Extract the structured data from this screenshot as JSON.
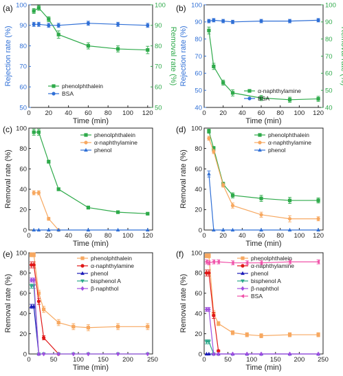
{
  "palette": {
    "blue": "#2f6fd6",
    "green": "#2eaa4a",
    "orange": "#f7a860",
    "red": "#e01818",
    "navy": "#1a1ab8",
    "teal": "#2aa88a",
    "purple": "#a050e0",
    "pink": "#f050a8"
  },
  "chart_data": [
    {
      "type": "line",
      "panel_label": "(a)",
      "xlabel": "Time (min)",
      "ylabel": "Rejection rate (%)",
      "ylabel_right": "Removal rate (%)",
      "xlim": [
        0,
        125
      ],
      "xticks": [
        0,
        20,
        40,
        60,
        80,
        100,
        120
      ],
      "ylim": [
        50,
        100
      ],
      "yticks": [
        50,
        60,
        70,
        80,
        90,
        100
      ],
      "ylim_right": [
        50,
        100
      ],
      "yticks_right": [
        50,
        60,
        70,
        80,
        90,
        100
      ],
      "legend_position": "lower-left",
      "series": [
        {
          "name": "phenolphthalein",
          "color": "green",
          "marker": "square",
          "axis": "right",
          "x": [
            5,
            10,
            20,
            30,
            60,
            90,
            120
          ],
          "y": [
            97,
            98.5,
            93,
            85.5,
            80,
            78.5,
            78
          ],
          "err": [
            1.2,
            1.2,
            1.2,
            1.8,
            1.5,
            1.5,
            1.8
          ]
        },
        {
          "name": "BSA",
          "color": "blue",
          "marker": "circle",
          "axis": "left",
          "x": [
            5,
            10,
            20,
            30,
            60,
            90,
            120
          ],
          "y": [
            90.5,
            90.5,
            90,
            90,
            91,
            90.5,
            90
          ],
          "err": [
            1,
            1,
            1,
            1,
            1,
            1,
            1
          ]
        }
      ]
    },
    {
      "type": "line",
      "panel_label": "(b)",
      "xlabel": "Time (min)",
      "ylabel": "Rejection rate (%)",
      "ylabel_right": "Removal rate (%)",
      "xlim": [
        0,
        125
      ],
      "xticks": [
        0,
        20,
        40,
        60,
        80,
        100,
        120
      ],
      "ylim": [
        40,
        100
      ],
      "yticks": [
        40,
        50,
        60,
        70,
        80,
        90,
        100
      ],
      "ylim_right": [
        40,
        100
      ],
      "yticks_right": [
        40,
        50,
        60,
        70,
        80,
        90,
        100
      ],
      "legend_position": "lower-center",
      "series": [
        {
          "name": "α-naphthylamine",
          "color": "green",
          "marker": "square",
          "axis": "right",
          "x": [
            5,
            10,
            20,
            30,
            60,
            90,
            120
          ],
          "y": [
            85,
            64,
            54.5,
            48.5,
            45.5,
            44.5,
            45
          ],
          "err": [
            2,
            1.8,
            1.5,
            1.8,
            1.5,
            1.5,
            1.5
          ]
        },
        {
          "name": "BSA",
          "color": "blue",
          "marker": "circle",
          "axis": "left",
          "x": [
            5,
            10,
            20,
            30,
            60,
            90,
            120
          ],
          "y": [
            90.5,
            91,
            90.5,
            90,
            90.5,
            90.5,
            91
          ],
          "err": [
            1,
            1,
            1,
            1,
            1,
            1,
            1
          ]
        }
      ]
    },
    {
      "type": "line",
      "panel_label": "(c)",
      "xlabel": "Time (min)",
      "ylabel": "Removal rate (%)",
      "xlim": [
        0,
        125
      ],
      "xticks": [
        0,
        20,
        40,
        60,
        80,
        100,
        120
      ],
      "ylim": [
        0,
        100
      ],
      "yticks": [
        0,
        20,
        40,
        60,
        80,
        100
      ],
      "legend_position": "top-right",
      "series": [
        {
          "name": "phenolphthalein",
          "color": "green",
          "marker": "square",
          "x": [
            5,
            10,
            20,
            30,
            60,
            90,
            120
          ],
          "y": [
            96,
            96,
            67,
            40,
            22,
            17.5,
            16
          ],
          "err": [
            3,
            3,
            1.5,
            1.5,
            1.5,
            1,
            1
          ]
        },
        {
          "name": "α-naphthylamine",
          "color": "orange",
          "marker": "circle",
          "x": [
            5,
            10,
            20,
            30
          ],
          "y": [
            36.5,
            36.5,
            11,
            0
          ],
          "err": [
            2,
            2,
            1.5,
            0.5
          ]
        },
        {
          "name": "phenol",
          "color": "blue",
          "marker": "triangle",
          "x": [
            5,
            10,
            20,
            30,
            60,
            90,
            120
          ],
          "y": [
            0,
            0,
            0,
            0,
            0,
            0,
            0
          ],
          "err": [
            0,
            0,
            0,
            0,
            0,
            0,
            0
          ]
        }
      ]
    },
    {
      "type": "line",
      "panel_label": "(d)",
      "xlabel": "Time (min)",
      "ylabel": "Removal rate (%)",
      "xlim": [
        0,
        125
      ],
      "xticks": [
        0,
        20,
        40,
        60,
        80,
        100,
        120
      ],
      "ylim": [
        0,
        100
      ],
      "yticks": [
        0,
        20,
        40,
        60,
        80,
        100
      ],
      "legend_position": "top-right",
      "series": [
        {
          "name": "phenolphthalein",
          "color": "green",
          "marker": "square",
          "x": [
            5,
            10,
            20,
            30,
            60,
            90,
            120
          ],
          "y": [
            97,
            80,
            45,
            34,
            31,
            29,
            29
          ],
          "err": [
            2,
            2,
            2,
            2.5,
            3,
            3,
            2.5
          ]
        },
        {
          "name": "α-naphthylamine",
          "color": "orange",
          "marker": "circle",
          "x": [
            5,
            10,
            20,
            30,
            60,
            90,
            120
          ],
          "y": [
            90,
            77,
            44,
            24,
            15,
            11,
            11
          ],
          "err": [
            2,
            2,
            2,
            2.5,
            2.5,
            3,
            2
          ]
        },
        {
          "name": "phenol",
          "color": "blue",
          "marker": "triangle",
          "x": [
            5,
            10,
            20,
            30,
            60,
            90,
            120
          ],
          "y": [
            55,
            0,
            0,
            0,
            0,
            0,
            0
          ],
          "err": [
            3,
            0,
            0,
            0,
            0,
            0,
            0
          ]
        }
      ]
    },
    {
      "type": "line",
      "panel_label": "(e)",
      "xlabel": "Time (min)",
      "ylabel": "Removal rate (%)",
      "xlim": [
        0,
        250
      ],
      "xticks": [
        0,
        50,
        100,
        150,
        200,
        250
      ],
      "ylim": [
        0,
        100
      ],
      "yticks": [
        0,
        20,
        40,
        60,
        80,
        100
      ],
      "legend_position": "top-right",
      "series": [
        {
          "name": "phenolphthalein",
          "color": "orange",
          "marker": "square",
          "x": [
            5,
            10,
            20,
            30,
            60,
            90,
            120,
            180,
            240
          ],
          "y": [
            98,
            98,
            60,
            44,
            31,
            27,
            26,
            27,
            27
          ],
          "err": [
            2,
            2,
            3,
            3,
            3,
            3,
            3,
            3,
            3
          ]
        },
        {
          "name": "α-naphthylamine",
          "color": "red",
          "marker": "circle",
          "x": [
            5,
            10,
            20,
            30,
            60
          ],
          "y": [
            88,
            88,
            52,
            16,
            0
          ],
          "err": [
            3,
            3,
            3,
            2,
            0
          ]
        },
        {
          "name": "phenol",
          "color": "navy",
          "marker": "triangle",
          "x": [
            5,
            10,
            20
          ],
          "y": [
            47,
            47,
            0
          ],
          "err": [
            2,
            2,
            0
          ]
        },
        {
          "name": "bisphenol A",
          "color": "teal",
          "marker": "triangle-down",
          "x": [
            5,
            10,
            20,
            30,
            60,
            90,
            120,
            180,
            240
          ],
          "y": [
            67,
            67,
            0,
            0,
            0,
            0,
            0,
            0,
            0
          ],
          "err": [
            2,
            2,
            0,
            0,
            0,
            0,
            0,
            0,
            0
          ]
        },
        {
          "name": "β-naphthol",
          "color": "purple",
          "marker": "diamond",
          "x": [
            5,
            10,
            20,
            30,
            60,
            90,
            120,
            180,
            240
          ],
          "y": [
            73,
            73,
            0,
            0,
            0,
            0,
            0,
            0,
            0
          ],
          "err": [
            2,
            2,
            0,
            0,
            0,
            0,
            0,
            0,
            0
          ]
        }
      ]
    },
    {
      "type": "line",
      "panel_label": "(f)",
      "xlabel": "Time (min)",
      "ylabel": "Removal rate (%)",
      "xlim": [
        0,
        250
      ],
      "xticks": [
        0,
        50,
        100,
        150,
        200,
        250
      ],
      "ylim": [
        0,
        100
      ],
      "yticks": [
        0,
        20,
        40,
        60,
        80,
        100
      ],
      "legend_position": "right",
      "series": [
        {
          "name": "phenolphthalein",
          "color": "orange",
          "marker": "square",
          "x": [
            5,
            10,
            20,
            30,
            60,
            90,
            120,
            180,
            240
          ],
          "y": [
            97,
            97,
            40,
            30,
            21,
            19,
            18,
            19,
            19
          ],
          "err": [
            2,
            2,
            3,
            2,
            2,
            2,
            2,
            2,
            2
          ]
        },
        {
          "name": "α-naphthylamine",
          "color": "red",
          "marker": "circle",
          "x": [
            5,
            10,
            20,
            30
          ],
          "y": [
            80,
            80,
            38,
            3
          ],
          "err": [
            3,
            3,
            3,
            1
          ]
        },
        {
          "name": "phenol",
          "color": "navy",
          "marker": "triangle",
          "x": [
            5,
            10,
            20,
            30,
            60,
            90,
            120,
            180,
            240
          ],
          "y": [
            0,
            0,
            0,
            0,
            0,
            0,
            0,
            0,
            0
          ],
          "err": [
            0,
            0,
            0,
            0,
            0,
            0,
            0,
            0,
            0
          ]
        },
        {
          "name": "bisphenol A",
          "color": "teal",
          "marker": "triangle-down",
          "x": [
            5,
            10,
            20
          ],
          "y": [
            12,
            12,
            0
          ],
          "err": [
            2,
            2,
            0
          ]
        },
        {
          "name": "β-naphthol",
          "color": "purple",
          "marker": "diamond",
          "x": [
            5,
            10,
            20,
            30,
            60,
            90,
            120,
            180,
            240
          ],
          "y": [
            44,
            44,
            0,
            0,
            0,
            0,
            0,
            0,
            0
          ],
          "err": [
            2,
            2,
            0,
            0,
            0,
            0,
            0,
            0,
            0
          ]
        },
        {
          "name": "BSA",
          "color": "pink",
          "marker": "triangle-left",
          "x": [
            5,
            10,
            20,
            30,
            60,
            90,
            120,
            180,
            240
          ],
          "y": [
            91,
            90,
            91,
            91,
            90,
            90,
            90,
            91,
            91
          ],
          "err": [
            2,
            2,
            2,
            2,
            2,
            2,
            2,
            2,
            2
          ]
        }
      ]
    }
  ]
}
